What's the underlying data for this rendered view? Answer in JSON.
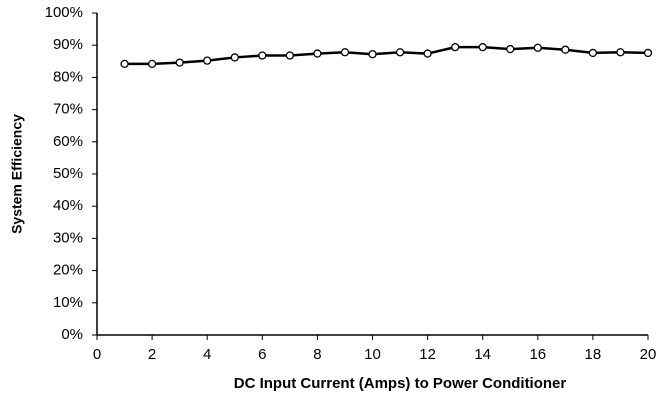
{
  "chart_data": {
    "type": "line",
    "xlabel": "DC Input Current (Amps) to Power Conditioner",
    "ylabel": "System Efficiency",
    "x": [
      1,
      2,
      3,
      4,
      5,
      6,
      7,
      8,
      9,
      10,
      11,
      12,
      13,
      14,
      15,
      16,
      17,
      18,
      19,
      20
    ],
    "series": [
      {
        "color": "#000000",
        "values": [
          84.2,
          84.2,
          84.6,
          85.2,
          86.2,
          86.8,
          86.8,
          87.4,
          87.8,
          87.2,
          87.8,
          87.4,
          89.4,
          89.4,
          88.8,
          89.2,
          88.6,
          87.6,
          87.8,
          87.6
        ]
      }
    ],
    "xlim": [
      0,
      20
    ],
    "xticks": [
      0,
      2,
      4,
      6,
      8,
      10,
      12,
      14,
      16,
      18,
      20
    ],
    "ylim": [
      0,
      100
    ],
    "yticks": [
      {
        "value": 0,
        "label": "0%"
      },
      {
        "value": 10,
        "label": "10%"
      },
      {
        "value": 20,
        "label": "20%"
      },
      {
        "value": 30,
        "label": "30%"
      },
      {
        "value": 40,
        "label": "40%"
      },
      {
        "value": 50,
        "label": "50%"
      },
      {
        "value": 60,
        "label": "60%"
      },
      {
        "value": 70,
        "label": "70%"
      },
      {
        "value": 80,
        "label": "80%"
      },
      {
        "value": 90,
        "label": "90%"
      },
      {
        "value": 100,
        "label": "100%"
      }
    ],
    "grid": false
  }
}
